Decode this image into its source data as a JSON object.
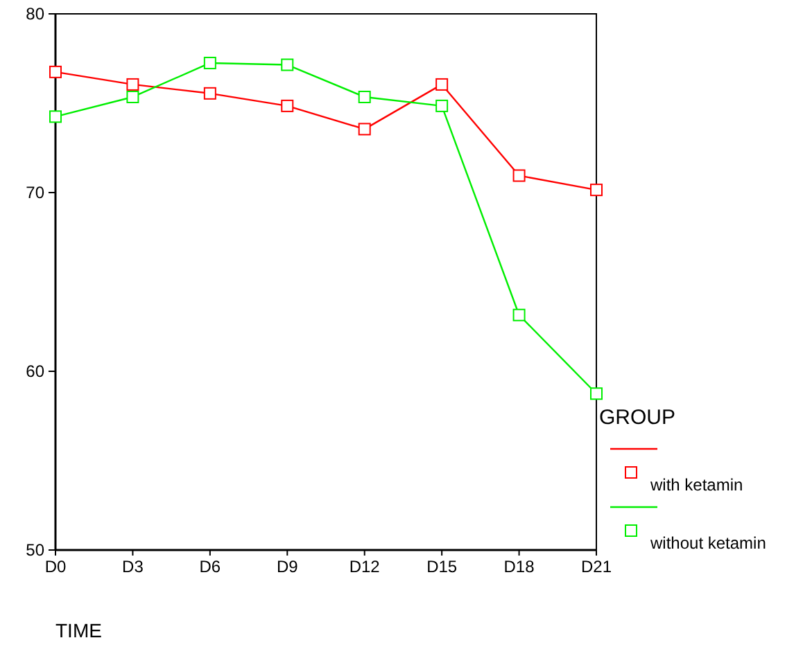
{
  "chart_data": {
    "type": "line",
    "xlabel": "TIME",
    "legend_title": "GROUP",
    "categories": [
      "D0",
      "D3",
      "D6",
      "D9",
      "D12",
      "D15",
      "D18",
      "D21"
    ],
    "series": [
      {
        "name": "with ketamin",
        "color": "#ff0000",
        "values": [
          76.75,
          76.05,
          75.55,
          74.85,
          73.55,
          76.05,
          70.95,
          70.15
        ]
      },
      {
        "name": "without ketamin",
        "color": "#00ee00",
        "values": [
          74.25,
          75.35,
          77.25,
          77.15,
          75.35,
          74.85,
          63.15,
          58.75
        ]
      }
    ],
    "ylim": [
      50,
      80
    ],
    "yticks": [
      50,
      60,
      70,
      80
    ],
    "marker": "square",
    "legend": "bottom right",
    "grid": false
  }
}
